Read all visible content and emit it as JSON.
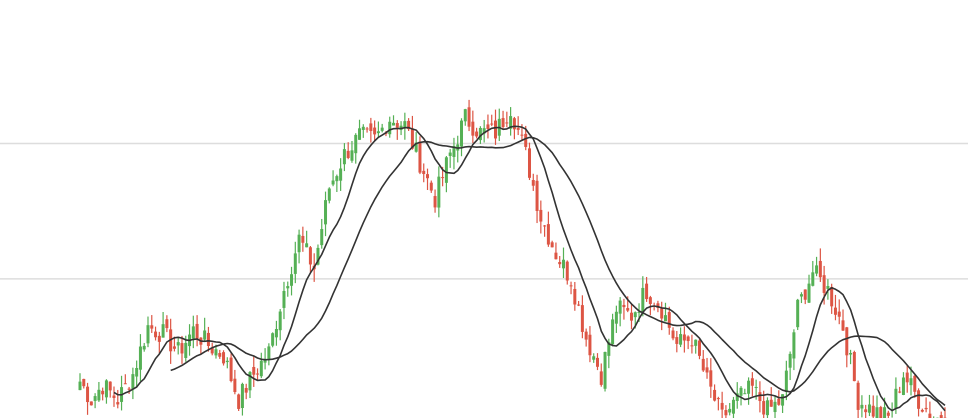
{
  "chart_data": {
    "type": "candlestick",
    "title": "",
    "xlabel": "",
    "ylabel": "",
    "ylim": [
      0,
      100
    ],
    "gridlines_y": [
      75,
      38
    ],
    "grid": true,
    "legend": "none",
    "colors": {
      "up": "#55b055",
      "down": "#dd5544",
      "moving_average": "#333333",
      "grid": "#dddddd"
    },
    "anchors": [
      [
        0,
        10
      ],
      [
        3,
        5
      ],
      [
        6,
        9
      ],
      [
        10,
        5
      ],
      [
        14,
        12
      ],
      [
        18,
        25
      ],
      [
        22,
        23
      ],
      [
        26,
        18
      ],
      [
        30,
        24
      ],
      [
        34,
        20
      ],
      [
        38,
        17
      ],
      [
        42,
        5
      ],
      [
        46,
        12
      ],
      [
        50,
        18
      ],
      [
        54,
        35
      ],
      [
        58,
        49
      ],
      [
        62,
        41
      ],
      [
        66,
        63
      ],
      [
        70,
        72
      ],
      [
        74,
        77
      ],
      [
        78,
        76
      ],
      [
        82,
        82
      ],
      [
        86,
        80
      ],
      [
        90,
        70
      ],
      [
        94,
        60
      ],
      [
        98,
        72
      ],
      [
        102,
        82
      ],
      [
        106,
        78
      ],
      [
        110,
        78
      ],
      [
        114,
        85
      ],
      [
        118,
        72
      ],
      [
        122,
        55
      ],
      [
        126,
        45
      ],
      [
        130,
        38
      ],
      [
        134,
        22
      ],
      [
        138,
        12
      ],
      [
        142,
        30
      ],
      [
        146,
        28
      ],
      [
        150,
        35
      ],
      [
        154,
        30
      ],
      [
        158,
        20
      ],
      [
        162,
        22
      ],
      [
        166,
        10
      ],
      [
        170,
        0
      ],
      [
        174,
        5
      ],
      [
        178,
        8
      ],
      [
        182,
        2
      ],
      [
        186,
        5
      ],
      [
        190,
        30
      ],
      [
        194,
        40
      ],
      [
        198,
        35
      ],
      [
        202,
        25
      ],
      [
        206,
        5
      ],
      [
        210,
        2
      ],
      [
        214,
        0
      ],
      [
        218,
        12
      ],
      [
        222,
        5
      ],
      [
        226,
        0
      ],
      [
        229,
        0
      ]
    ],
    "moving_averages": [
      {
        "period": 10
      },
      {
        "period": 25
      }
    ]
  }
}
